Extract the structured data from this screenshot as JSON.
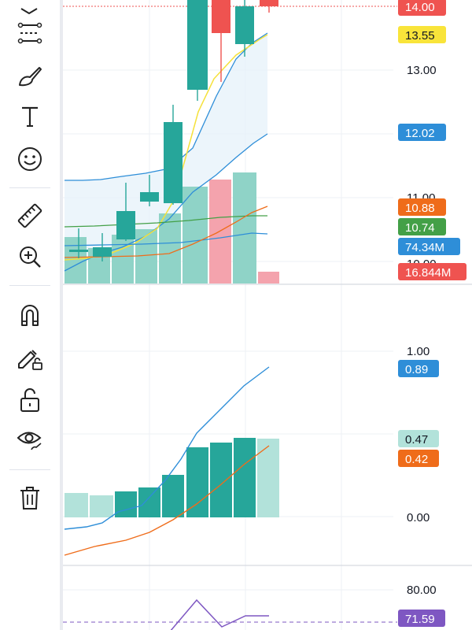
{
  "toolbar": {
    "tools": [
      {
        "name": "fib-tool-icon"
      },
      {
        "name": "pattern-tool-icon"
      },
      {
        "name": "brush-icon"
      },
      {
        "name": "text-icon"
      },
      {
        "name": "emoji-icon"
      },
      {
        "name": "ruler-icon"
      },
      {
        "name": "zoom-in-icon"
      },
      {
        "name": "magnet-icon"
      },
      {
        "name": "lock-drawings-icon"
      },
      {
        "name": "unlock-icon"
      },
      {
        "name": "eye-icon"
      },
      {
        "name": "trash-icon"
      }
    ]
  },
  "colors": {
    "up_candle": "#26a69a",
    "down_candle": "#ef5350",
    "ma_yellow": "#f5e13b",
    "ma_blue": "#2e8ed8",
    "ma_orange": "#ef6c1a",
    "ma_green": "#43a047",
    "macd_line": "#2e8ed8",
    "signal_line": "#ef6c1a",
    "rsi_line": "#7e57c2",
    "vol_up": "#8fd3c7",
    "vol_down": "#f4a3ad",
    "hist_up": "#26a69a",
    "hist_light": "#b2e2da"
  },
  "price_pane": {
    "axis_ticks": [
      "14.00",
      "13.00",
      "12.00",
      "11.00",
      "10.00"
    ],
    "price_labels": [
      {
        "text": "14.00",
        "color": "#ef5350"
      },
      {
        "text": "13.55",
        "color": "#f9e43a"
      },
      {
        "text": "12.02",
        "color": "#2e8ed8"
      },
      {
        "text": "10.88",
        "color": "#ef6c1a"
      },
      {
        "text": "10.74",
        "color": "#43a047"
      },
      {
        "text": "74.34M",
        "color": "#2e8ed8"
      },
      {
        "text": "16.844M",
        "color": "#ef5350"
      }
    ]
  },
  "macd_pane": {
    "axis_ticks": [
      "1.00",
      "0.00"
    ],
    "labels": [
      {
        "text": "0.89",
        "color": "#2e8ed8"
      },
      {
        "text": "0.47",
        "color": "#b2e2da"
      },
      {
        "text": "0.42",
        "color": "#ef6c1a"
      }
    ]
  },
  "rsi_pane": {
    "axis_ticks": [
      "80.00"
    ],
    "labels": [
      {
        "text": "71.59",
        "color": "#7e57c2"
      }
    ]
  }
}
